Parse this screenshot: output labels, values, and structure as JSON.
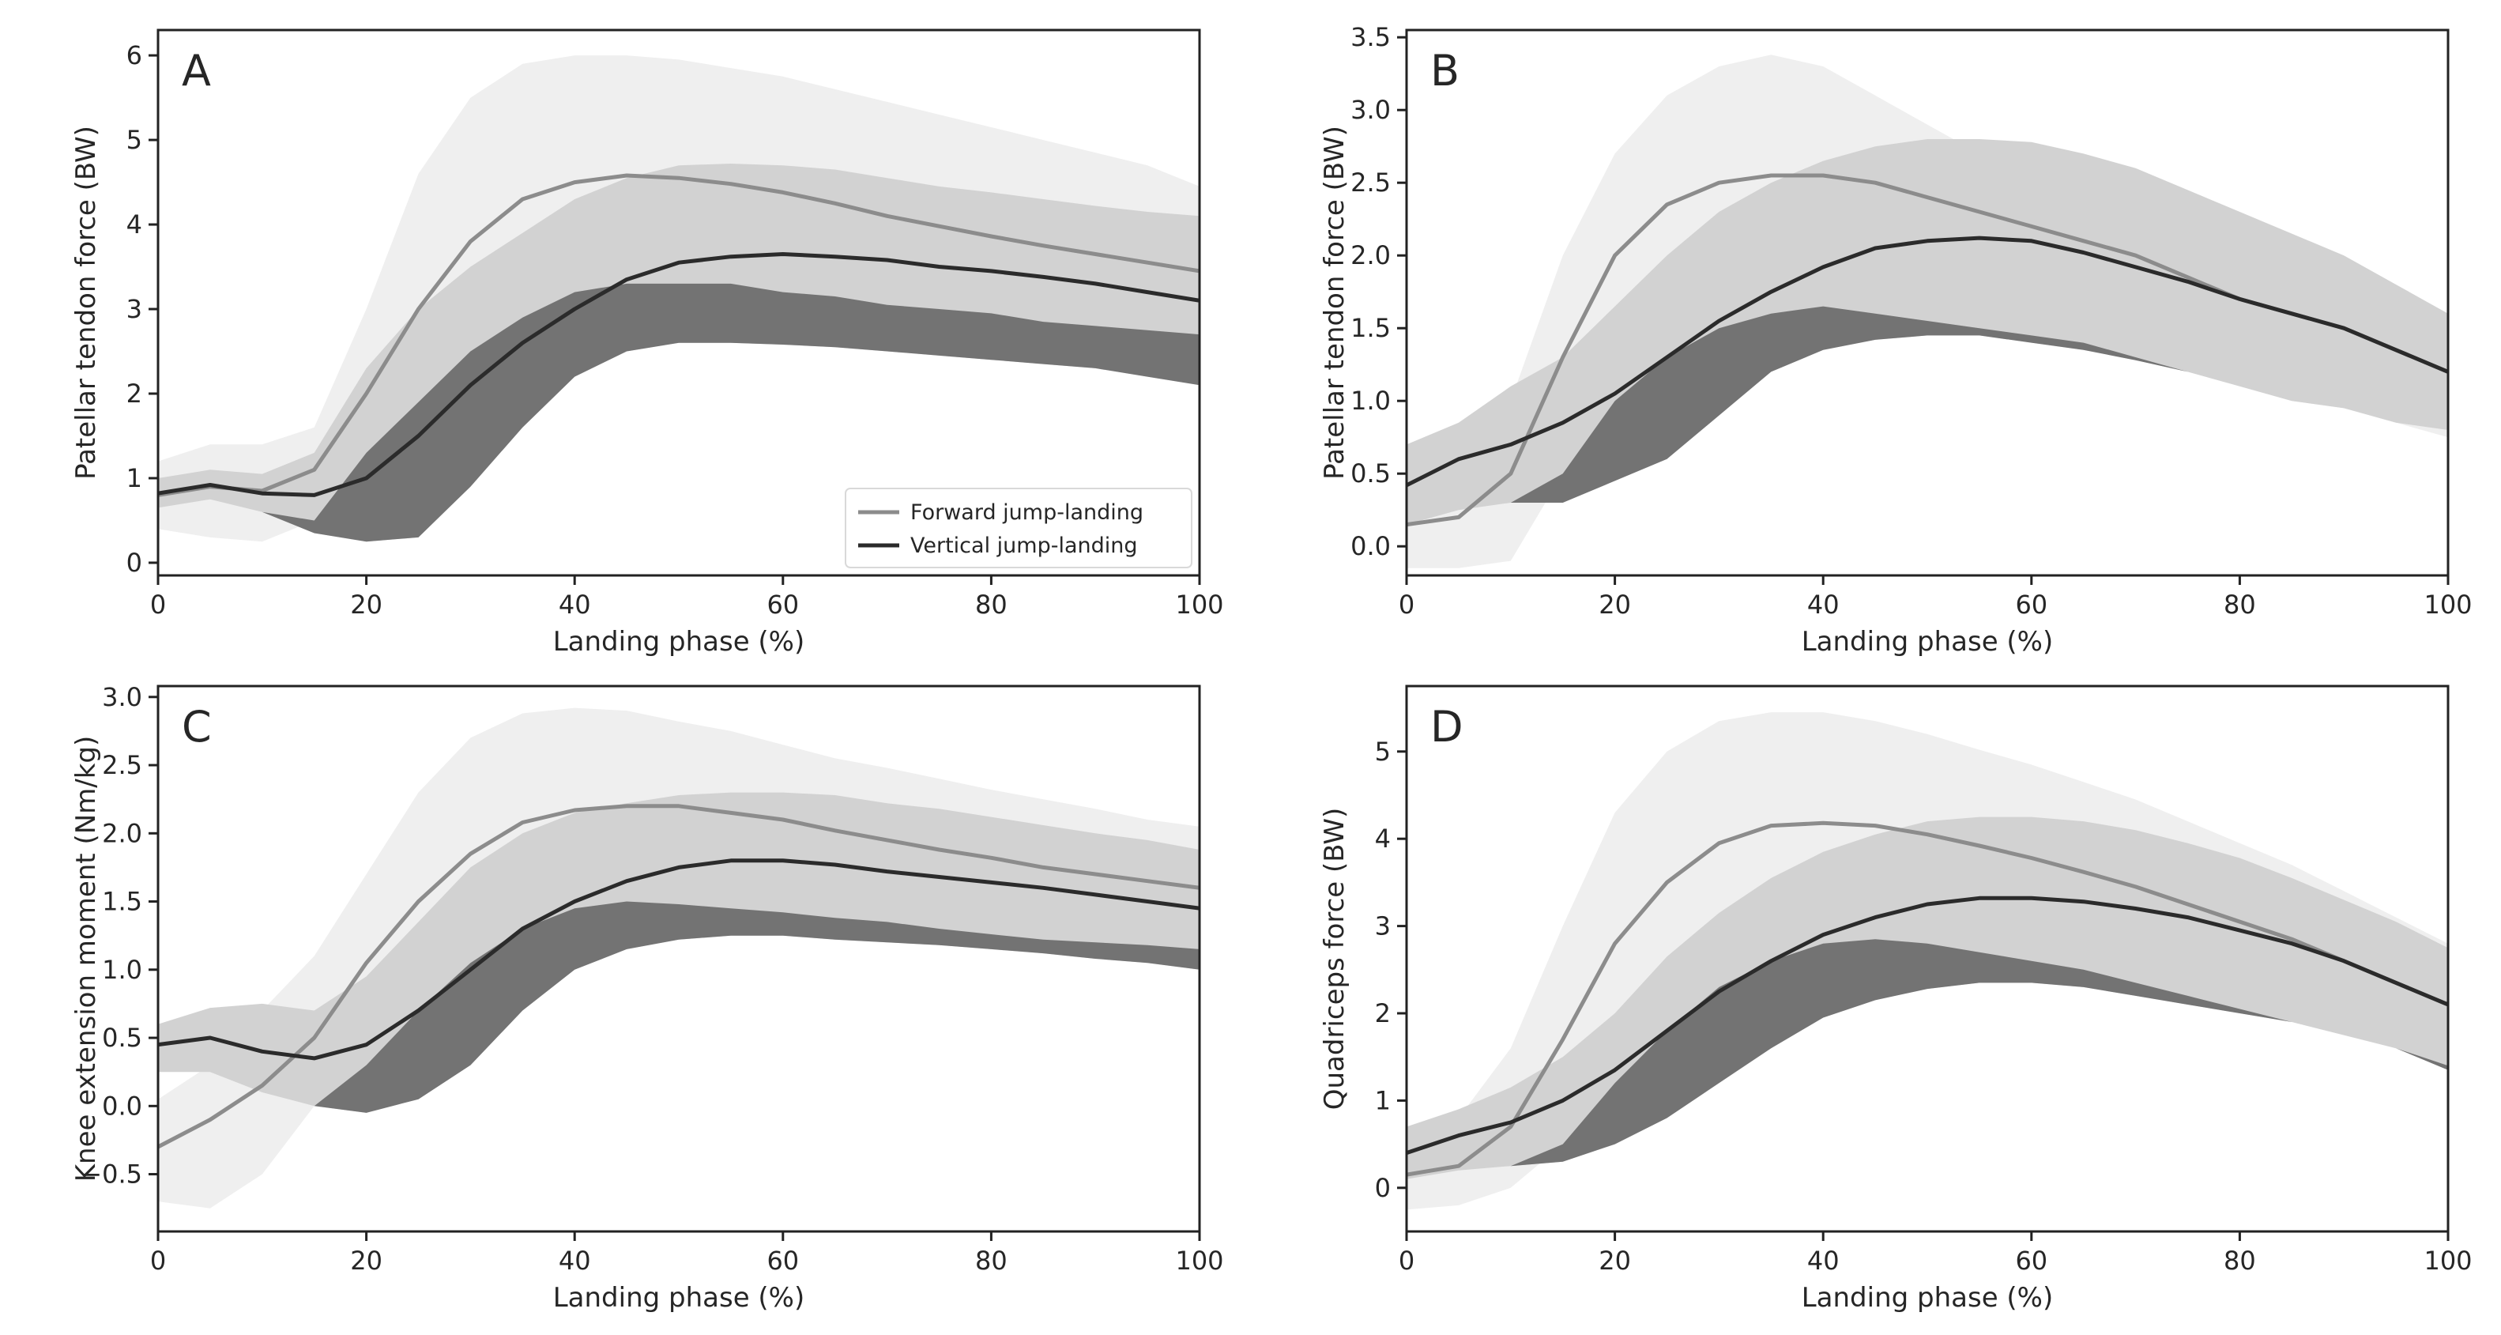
{
  "chart_data": [
    {
      "type": "area",
      "panel": "A",
      "xlabel": "Landing phase (%)",
      "ylabel": "Patellar tendon force (BW)",
      "xlim": [
        0,
        100
      ],
      "ylim": [
        -0.15,
        6.3
      ],
      "xticks": [
        0,
        20,
        40,
        60,
        80,
        100
      ],
      "yticks": [
        0,
        1,
        2,
        3,
        4,
        5,
        6
      ],
      "legend": {
        "position": "bottom-right",
        "entries": [
          {
            "name": "Forward jump-landing",
            "color": "#8c8c8c"
          },
          {
            "name": "Vertical jump-landing",
            "color": "#2b2b2b"
          }
        ]
      },
      "series": [
        {
          "name": "Forward jump-landing",
          "color": "#8c8c8c",
          "band_color": "#efefef",
          "x": [
            0,
            5,
            10,
            15,
            20,
            25,
            30,
            35,
            40,
            45,
            50,
            55,
            60,
            65,
            70,
            75,
            80,
            85,
            90,
            95,
            100
          ],
          "mean": [
            0.8,
            0.9,
            0.85,
            1.1,
            2.0,
            3.0,
            3.8,
            4.3,
            4.5,
            4.58,
            4.55,
            4.48,
            4.38,
            4.25,
            4.1,
            3.98,
            3.86,
            3.75,
            3.65,
            3.55,
            3.45
          ],
          "upper": [
            1.2,
            1.4,
            1.4,
            1.6,
            3.0,
            4.6,
            5.5,
            5.9,
            6.0,
            6.0,
            5.95,
            5.85,
            5.75,
            5.6,
            5.45,
            5.3,
            5.15,
            5.0,
            4.85,
            4.7,
            4.45
          ],
          "lower": [
            0.4,
            0.3,
            0.25,
            0.5,
            1.3,
            1.9,
            2.5,
            2.9,
            3.2,
            3.3,
            3.3,
            3.3,
            3.2,
            3.15,
            3.05,
            3.0,
            2.95,
            2.85,
            2.8,
            2.75,
            2.7
          ]
        },
        {
          "name": "Vertical jump-landing",
          "color": "#2b2b2b",
          "band_color": "#d2d2d2",
          "band_overlap_color": "#737373",
          "x": [
            0,
            5,
            10,
            15,
            20,
            25,
            30,
            35,
            40,
            45,
            50,
            55,
            60,
            65,
            70,
            75,
            80,
            85,
            90,
            95,
            100
          ],
          "mean": [
            0.82,
            0.92,
            0.82,
            0.8,
            1.0,
            1.5,
            2.1,
            2.6,
            3.0,
            3.35,
            3.55,
            3.62,
            3.65,
            3.62,
            3.58,
            3.5,
            3.45,
            3.38,
            3.3,
            3.2,
            3.1
          ],
          "upper": [
            1.0,
            1.1,
            1.05,
            1.3,
            2.3,
            3.0,
            3.5,
            3.9,
            4.3,
            4.55,
            4.7,
            4.72,
            4.7,
            4.65,
            4.55,
            4.45,
            4.38,
            4.3,
            4.22,
            4.15,
            4.1
          ],
          "lower": [
            0.65,
            0.75,
            0.6,
            0.35,
            0.25,
            0.3,
            0.9,
            1.6,
            2.2,
            2.5,
            2.6,
            2.6,
            2.58,
            2.55,
            2.5,
            2.45,
            2.4,
            2.35,
            2.3,
            2.2,
            2.1
          ]
        }
      ]
    },
    {
      "type": "area",
      "panel": "B",
      "xlabel": "Landing phase (%)",
      "ylabel": "Patellar tendon force (BW)",
      "xlim": [
        0,
        100
      ],
      "ylim": [
        -0.2,
        3.55
      ],
      "xticks": [
        0,
        20,
        40,
        60,
        80,
        100
      ],
      "yticks": [
        0.0,
        0.5,
        1.0,
        1.5,
        2.0,
        2.5,
        3.0,
        3.5
      ],
      "ytick_labels": [
        "0.0",
        "0.5",
        "1.0",
        "1.5",
        "2.0",
        "2.5",
        "3.0",
        "3.5"
      ],
      "series": [
        {
          "name": "Forward jump-landing",
          "color": "#8c8c8c",
          "band_color": "#efefef",
          "x": [
            0,
            5,
            10,
            15,
            20,
            25,
            30,
            35,
            40,
            45,
            50,
            55,
            60,
            65,
            70,
            75,
            80,
            85,
            90,
            95,
            100
          ],
          "mean": [
            0.15,
            0.2,
            0.5,
            1.3,
            2.0,
            2.35,
            2.5,
            2.55,
            2.55,
            2.5,
            2.4,
            2.3,
            2.2,
            2.1,
            2.0,
            1.85,
            1.7,
            1.6,
            1.5,
            1.35,
            1.2
          ],
          "upper": [
            0.5,
            0.7,
            1.0,
            2.0,
            2.7,
            3.1,
            3.3,
            3.38,
            3.3,
            3.1,
            2.9,
            2.7,
            2.6,
            2.48,
            2.35,
            2.2,
            2.05,
            1.9,
            1.75,
            1.55,
            1.3
          ],
          "lower": [
            -0.15,
            -0.15,
            -0.1,
            0.5,
            1.0,
            1.3,
            1.5,
            1.6,
            1.65,
            1.6,
            1.55,
            1.5,
            1.45,
            1.4,
            1.3,
            1.2,
            1.1,
            1.0,
            0.95,
            0.85,
            0.75
          ]
        },
        {
          "name": "Vertical jump-landing",
          "color": "#2b2b2b",
          "band_color": "#d2d2d2",
          "band_overlap_color": "#737373",
          "x": [
            0,
            5,
            10,
            15,
            20,
            25,
            30,
            35,
            40,
            45,
            50,
            55,
            60,
            65,
            70,
            75,
            80,
            85,
            90,
            95,
            100
          ],
          "mean": [
            0.42,
            0.6,
            0.7,
            0.85,
            1.05,
            1.3,
            1.55,
            1.75,
            1.92,
            2.05,
            2.1,
            2.12,
            2.1,
            2.02,
            1.92,
            1.82,
            1.7,
            1.6,
            1.5,
            1.35,
            1.2
          ],
          "upper": [
            0.7,
            0.85,
            1.1,
            1.3,
            1.65,
            2.0,
            2.3,
            2.5,
            2.65,
            2.75,
            2.8,
            2.8,
            2.78,
            2.7,
            2.6,
            2.45,
            2.3,
            2.15,
            2.0,
            1.8,
            1.6
          ],
          "lower": [
            0.15,
            0.25,
            0.3,
            0.3,
            0.45,
            0.6,
            0.9,
            1.2,
            1.35,
            1.42,
            1.45,
            1.45,
            1.4,
            1.35,
            1.28,
            1.2,
            1.1,
            1.0,
            0.95,
            0.85,
            0.8
          ]
        }
      ]
    },
    {
      "type": "area",
      "panel": "C",
      "xlabel": "Landing phase (%)",
      "ylabel": "Knee extension moment (Nm/kg)",
      "xlim": [
        0,
        100
      ],
      "ylim": [
        -0.92,
        3.08
      ],
      "xticks": [
        0,
        20,
        40,
        60,
        80,
        100
      ],
      "yticks": [
        -0.5,
        0.0,
        0.5,
        1.0,
        1.5,
        2.0,
        2.5,
        3.0
      ],
      "ytick_labels": [
        "−0.5",
        "0.0",
        "0.5",
        "1.0",
        "1.5",
        "2.0",
        "2.5",
        "3.0"
      ],
      "series": [
        {
          "name": "Forward jump-landing",
          "color": "#8c8c8c",
          "band_color": "#efefef",
          "x": [
            0,
            5,
            10,
            15,
            20,
            25,
            30,
            35,
            40,
            45,
            50,
            55,
            60,
            65,
            70,
            75,
            80,
            85,
            90,
            95,
            100
          ],
          "mean": [
            -0.3,
            -0.1,
            0.15,
            0.5,
            1.05,
            1.5,
            1.85,
            2.08,
            2.17,
            2.2,
            2.2,
            2.15,
            2.1,
            2.02,
            1.95,
            1.88,
            1.82,
            1.75,
            1.7,
            1.65,
            1.6
          ],
          "upper": [
            0.05,
            0.3,
            0.7,
            1.1,
            1.7,
            2.3,
            2.7,
            2.88,
            2.92,
            2.9,
            2.82,
            2.75,
            2.65,
            2.55,
            2.48,
            2.4,
            2.32,
            2.25,
            2.18,
            2.1,
            2.05
          ],
          "lower": [
            -0.7,
            -0.75,
            -0.5,
            0.0,
            0.3,
            0.7,
            1.05,
            1.3,
            1.45,
            1.5,
            1.48,
            1.45,
            1.42,
            1.38,
            1.35,
            1.3,
            1.26,
            1.22,
            1.2,
            1.18,
            1.15
          ]
        },
        {
          "name": "Vertical jump-landing",
          "color": "#2b2b2b",
          "band_color": "#d2d2d2",
          "band_overlap_color": "#737373",
          "x": [
            0,
            5,
            10,
            15,
            20,
            25,
            30,
            35,
            40,
            45,
            50,
            55,
            60,
            65,
            70,
            75,
            80,
            85,
            90,
            95,
            100
          ],
          "mean": [
            0.45,
            0.5,
            0.4,
            0.35,
            0.45,
            0.7,
            1.0,
            1.3,
            1.5,
            1.65,
            1.75,
            1.8,
            1.8,
            1.77,
            1.72,
            1.68,
            1.64,
            1.6,
            1.55,
            1.5,
            1.45
          ],
          "upper": [
            0.6,
            0.72,
            0.75,
            0.7,
            0.95,
            1.35,
            1.75,
            2.0,
            2.15,
            2.22,
            2.28,
            2.3,
            2.3,
            2.28,
            2.22,
            2.18,
            2.12,
            2.06,
            2.0,
            1.95,
            1.88
          ],
          "lower": [
            0.25,
            0.25,
            0.1,
            0.0,
            -0.05,
            0.05,
            0.3,
            0.7,
            1.0,
            1.15,
            1.22,
            1.25,
            1.25,
            1.22,
            1.2,
            1.18,
            1.15,
            1.12,
            1.08,
            1.05,
            1.0
          ]
        }
      ]
    },
    {
      "type": "area",
      "panel": "D",
      "xlabel": "Landing phase (%)",
      "ylabel": "Quadriceps force (BW)",
      "xlim": [
        0,
        100
      ],
      "ylim": [
        -0.5,
        5.75
      ],
      "xticks": [
        0,
        20,
        40,
        60,
        80,
        100
      ],
      "yticks": [
        0,
        1,
        2,
        3,
        4,
        5
      ],
      "series": [
        {
          "name": "Forward jump-landing",
          "color": "#8c8c8c",
          "band_color": "#efefef",
          "x": [
            0,
            5,
            10,
            15,
            20,
            25,
            30,
            35,
            40,
            45,
            50,
            55,
            60,
            65,
            70,
            75,
            80,
            85,
            90,
            95,
            100
          ],
          "mean": [
            0.15,
            0.25,
            0.7,
            1.7,
            2.8,
            3.5,
            3.95,
            4.15,
            4.18,
            4.15,
            4.05,
            3.92,
            3.78,
            3.62,
            3.45,
            3.25,
            3.05,
            2.85,
            2.6,
            2.35,
            2.1
          ],
          "upper": [
            0.5,
            0.8,
            1.6,
            3.0,
            4.3,
            5.0,
            5.35,
            5.45,
            5.45,
            5.35,
            5.2,
            5.02,
            4.85,
            4.65,
            4.45,
            4.2,
            3.95,
            3.7,
            3.4,
            3.1,
            2.8
          ],
          "lower": [
            -0.25,
            -0.2,
            0.0,
            0.5,
            1.2,
            1.8,
            2.3,
            2.6,
            2.8,
            2.85,
            2.8,
            2.7,
            2.6,
            2.5,
            2.35,
            2.2,
            2.05,
            1.9,
            1.75,
            1.6,
            1.4
          ]
        },
        {
          "name": "Vertical jump-landing",
          "color": "#2b2b2b",
          "band_color": "#d2d2d2",
          "band_overlap_color": "#737373",
          "x": [
            0,
            5,
            10,
            15,
            20,
            25,
            30,
            35,
            40,
            45,
            50,
            55,
            60,
            65,
            70,
            75,
            80,
            85,
            90,
            95,
            100
          ],
          "mean": [
            0.4,
            0.6,
            0.75,
            1.0,
            1.35,
            1.8,
            2.25,
            2.6,
            2.9,
            3.1,
            3.25,
            3.32,
            3.32,
            3.28,
            3.2,
            3.1,
            2.95,
            2.8,
            2.6,
            2.35,
            2.1
          ],
          "upper": [
            0.7,
            0.9,
            1.15,
            1.5,
            2.0,
            2.65,
            3.15,
            3.55,
            3.85,
            4.05,
            4.2,
            4.25,
            4.25,
            4.2,
            4.1,
            3.95,
            3.78,
            3.55,
            3.3,
            3.05,
            2.75
          ],
          "lower": [
            0.1,
            0.2,
            0.25,
            0.3,
            0.5,
            0.8,
            1.2,
            1.6,
            1.95,
            2.15,
            2.28,
            2.35,
            2.35,
            2.3,
            2.2,
            2.1,
            2.0,
            1.9,
            1.75,
            1.6,
            1.35
          ]
        }
      ]
    }
  ]
}
